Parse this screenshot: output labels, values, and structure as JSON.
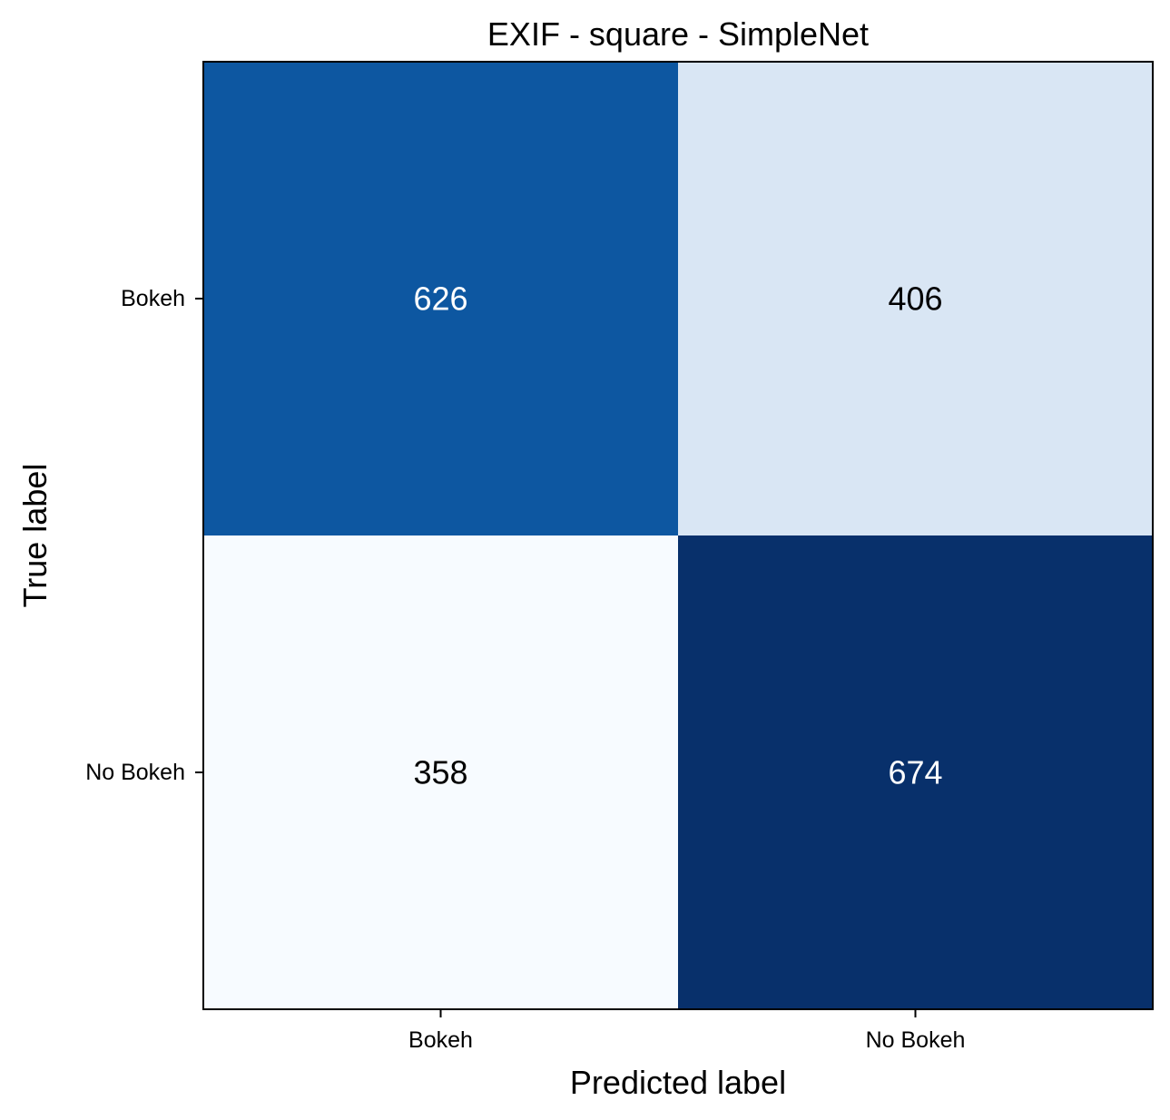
{
  "chart_data": {
    "type": "heatmap",
    "title": "EXIF - square - SimpleNet",
    "xlabel": "Predicted label",
    "ylabel": "True label",
    "x_categories": [
      "Bokeh",
      "No Bokeh"
    ],
    "y_categories": [
      "Bokeh",
      "No Bokeh"
    ],
    "values": [
      [
        626,
        406
      ],
      [
        358,
        674
      ]
    ],
    "colormap": "Blues",
    "colors": {
      "cell_0_0": "#0d57a1",
      "cell_0_1": "#d9e6f4",
      "cell_1_0": "#f7fbff",
      "cell_1_1": "#08306b",
      "text_dark": "#000000",
      "text_light": "#ffffff",
      "frame": "#000000"
    }
  }
}
